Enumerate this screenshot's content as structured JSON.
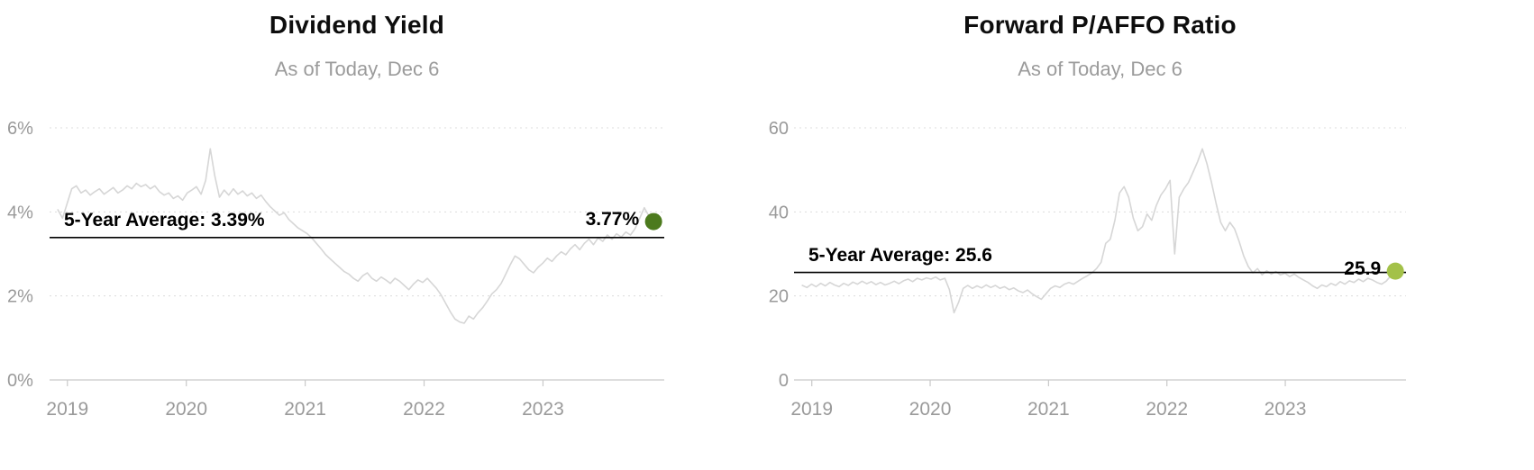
{
  "page": {
    "background": "#ffffff"
  },
  "chart_data": [
    {
      "type": "line",
      "title": "Dividend Yield",
      "subtitle": "As of Today, Dec 6",
      "legend": "none",
      "grid": "horizontal-dotted",
      "series_color": "#d6d6d6",
      "average": {
        "value": 3.39,
        "label": "5-Year Average: 3.39%",
        "line_color": "#000000"
      },
      "current": {
        "value": 3.77,
        "label": "3.77%",
        "dot_color": "#4c7a1d"
      },
      "xlim": [
        2018.85,
        2024.02
      ],
      "ylim": [
        0,
        6.3
      ],
      "x_start": 2018.92,
      "x_end": 2023.93,
      "y_ticks": [
        {
          "v": 0,
          "label": "0%"
        },
        {
          "v": 2,
          "label": "2%"
        },
        {
          "v": 4,
          "label": "4%"
        },
        {
          "v": 6,
          "label": "6%"
        }
      ],
      "x_ticks": [
        {
          "v": 2019,
          "label": "2019"
        },
        {
          "v": 2020,
          "label": "2020"
        },
        {
          "v": 2021,
          "label": "2021"
        },
        {
          "v": 2022,
          "label": "2022"
        },
        {
          "v": 2023,
          "label": "2023"
        }
      ],
      "values": [
        4.05,
        3.85,
        4.2,
        4.55,
        4.62,
        4.45,
        4.52,
        4.4,
        4.48,
        4.55,
        4.42,
        4.5,
        4.58,
        4.45,
        4.52,
        4.62,
        4.55,
        4.68,
        4.6,
        4.65,
        4.55,
        4.62,
        4.48,
        4.4,
        4.45,
        4.32,
        4.38,
        4.28,
        4.45,
        4.52,
        4.6,
        4.42,
        4.75,
        5.5,
        4.85,
        4.35,
        4.52,
        4.4,
        4.55,
        4.42,
        4.5,
        4.38,
        4.45,
        4.32,
        4.4,
        4.25,
        4.12,
        4.02,
        3.92,
        3.98,
        3.82,
        3.72,
        3.62,
        3.55,
        3.48,
        3.38,
        3.25,
        3.12,
        2.98,
        2.88,
        2.78,
        2.68,
        2.58,
        2.52,
        2.42,
        2.35,
        2.48,
        2.55,
        2.42,
        2.35,
        2.45,
        2.38,
        2.3,
        2.42,
        2.35,
        2.25,
        2.15,
        2.28,
        2.38,
        2.32,
        2.42,
        2.3,
        2.18,
        2.02,
        1.82,
        1.62,
        1.45,
        1.38,
        1.35,
        1.52,
        1.45,
        1.6,
        1.72,
        1.88,
        2.05,
        2.15,
        2.3,
        2.52,
        2.75,
        2.95,
        2.88,
        2.75,
        2.62,
        2.55,
        2.68,
        2.78,
        2.9,
        2.82,
        2.95,
        3.05,
        2.98,
        3.12,
        3.22,
        3.1,
        3.25,
        3.35,
        3.22,
        3.38,
        3.3,
        3.45,
        3.35,
        3.48,
        3.4,
        3.52,
        3.45,
        3.6,
        3.85,
        4.1,
        3.9,
        3.77
      ]
    },
    {
      "type": "line",
      "title": "Forward P/AFFO Ratio",
      "subtitle": "As of Today, Dec 6",
      "legend": "none",
      "grid": "horizontal-dotted",
      "series_color": "#d6d6d6",
      "average": {
        "value": 25.6,
        "label": "5-Year Average: 25.6",
        "line_color": "#000000"
      },
      "current": {
        "value": 25.9,
        "label": "25.9",
        "dot_color": "#a3c149"
      },
      "xlim": [
        2018.85,
        2024.02
      ],
      "ylim": [
        0,
        63
      ],
      "x_start": 2018.92,
      "x_end": 2023.93,
      "y_ticks": [
        {
          "v": 0,
          "label": "0"
        },
        {
          "v": 20,
          "label": "20"
        },
        {
          "v": 40,
          "label": "40"
        },
        {
          "v": 60,
          "label": "60"
        }
      ],
      "x_ticks": [
        {
          "v": 2019,
          "label": "2019"
        },
        {
          "v": 2020,
          "label": "2020"
        },
        {
          "v": 2021,
          "label": "2021"
        },
        {
          "v": 2022,
          "label": "2022"
        },
        {
          "v": 2023,
          "label": "2023"
        }
      ],
      "values": [
        22.5,
        22.0,
        22.8,
        22.2,
        23.0,
        22.4,
        23.2,
        22.6,
        22.2,
        23.0,
        22.5,
        23.3,
        22.8,
        23.5,
        22.9,
        23.4,
        22.7,
        23.2,
        22.6,
        23.0,
        23.5,
        22.9,
        23.6,
        24.0,
        23.4,
        24.2,
        23.8,
        24.3,
        24.0,
        24.5,
        23.8,
        24.2,
        21.5,
        16.0,
        18.5,
        21.8,
        22.5,
        21.8,
        22.4,
        21.9,
        22.6,
        22.0,
        22.5,
        21.8,
        22.2,
        21.5,
        21.9,
        21.2,
        20.8,
        21.4,
        20.5,
        19.8,
        19.2,
        20.5,
        21.8,
        22.4,
        22.0,
        22.8,
        23.2,
        22.8,
        23.5,
        24.2,
        24.8,
        25.5,
        26.5,
        28.0,
        32.5,
        33.5,
        38.0,
        44.5,
        46.0,
        43.5,
        38.5,
        35.5,
        36.5,
        39.5,
        38.0,
        41.5,
        44.0,
        45.5,
        47.5,
        30.0,
        43.5,
        45.5,
        47.0,
        49.5,
        52.0,
        55.0,
        51.5,
        47.0,
        42.0,
        37.5,
        35.5,
        37.5,
        36.0,
        33.0,
        29.5,
        27.0,
        25.5,
        26.5,
        25.0,
        26.0,
        25.2,
        25.8,
        25.0,
        25.4,
        24.6,
        25.2,
        24.4,
        23.8,
        23.2,
        22.4,
        21.8,
        22.6,
        22.2,
        23.0,
        22.5,
        23.4,
        22.8,
        23.6,
        23.2,
        24.0,
        23.4,
        24.2,
        23.8,
        23.2,
        22.8,
        23.5,
        24.8,
        25.9
      ]
    }
  ]
}
